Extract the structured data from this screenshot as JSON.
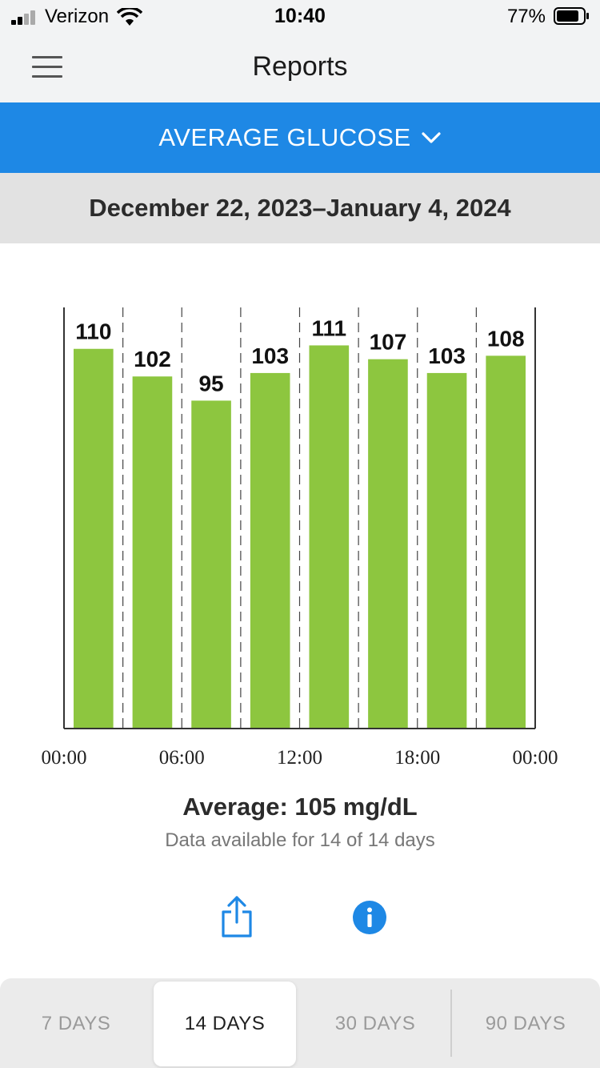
{
  "status_bar": {
    "carrier": "Verizon",
    "time": "10:40",
    "battery": "77%"
  },
  "nav": {
    "title": "Reports",
    "menu_icon": "hamburger-menu-icon"
  },
  "report_selector": {
    "label": "AVERAGE GLUCOSE",
    "icon": "chevron-down-icon"
  },
  "date_range": "December 22, 2023–January 4, 2024",
  "colors": {
    "accent": "#1e88e5",
    "bar": "#8dc63f",
    "header_bg": "#f2f3f4",
    "date_bg": "#e2e2e2"
  },
  "chart_data": {
    "type": "bar",
    "categories": [
      "00:00–03:00",
      "03:00–06:00",
      "06:00–09:00",
      "09:00–12:00",
      "12:00–15:00",
      "15:00–18:00",
      "18:00–21:00",
      "21:00–24:00"
    ],
    "values": [
      110,
      102,
      95,
      103,
      111,
      107,
      103,
      108
    ],
    "x_ticks": [
      "00:00",
      "06:00",
      "12:00",
      "18:00",
      "00:00"
    ],
    "ylim": [
      0,
      122
    ],
    "grid": "dashed vertical separators"
  },
  "summary": {
    "average": "Average: 105 mg/dL",
    "availability": "Data available for 14 of 14 days"
  },
  "actions": {
    "share_icon": "share-icon",
    "info_icon": "info-icon"
  },
  "periods": [
    {
      "label": "7 DAYS",
      "active": false
    },
    {
      "label": "14 DAYS",
      "active": true
    },
    {
      "label": "30 DAYS",
      "active": false
    },
    {
      "label": "90 DAYS",
      "active": false
    }
  ]
}
